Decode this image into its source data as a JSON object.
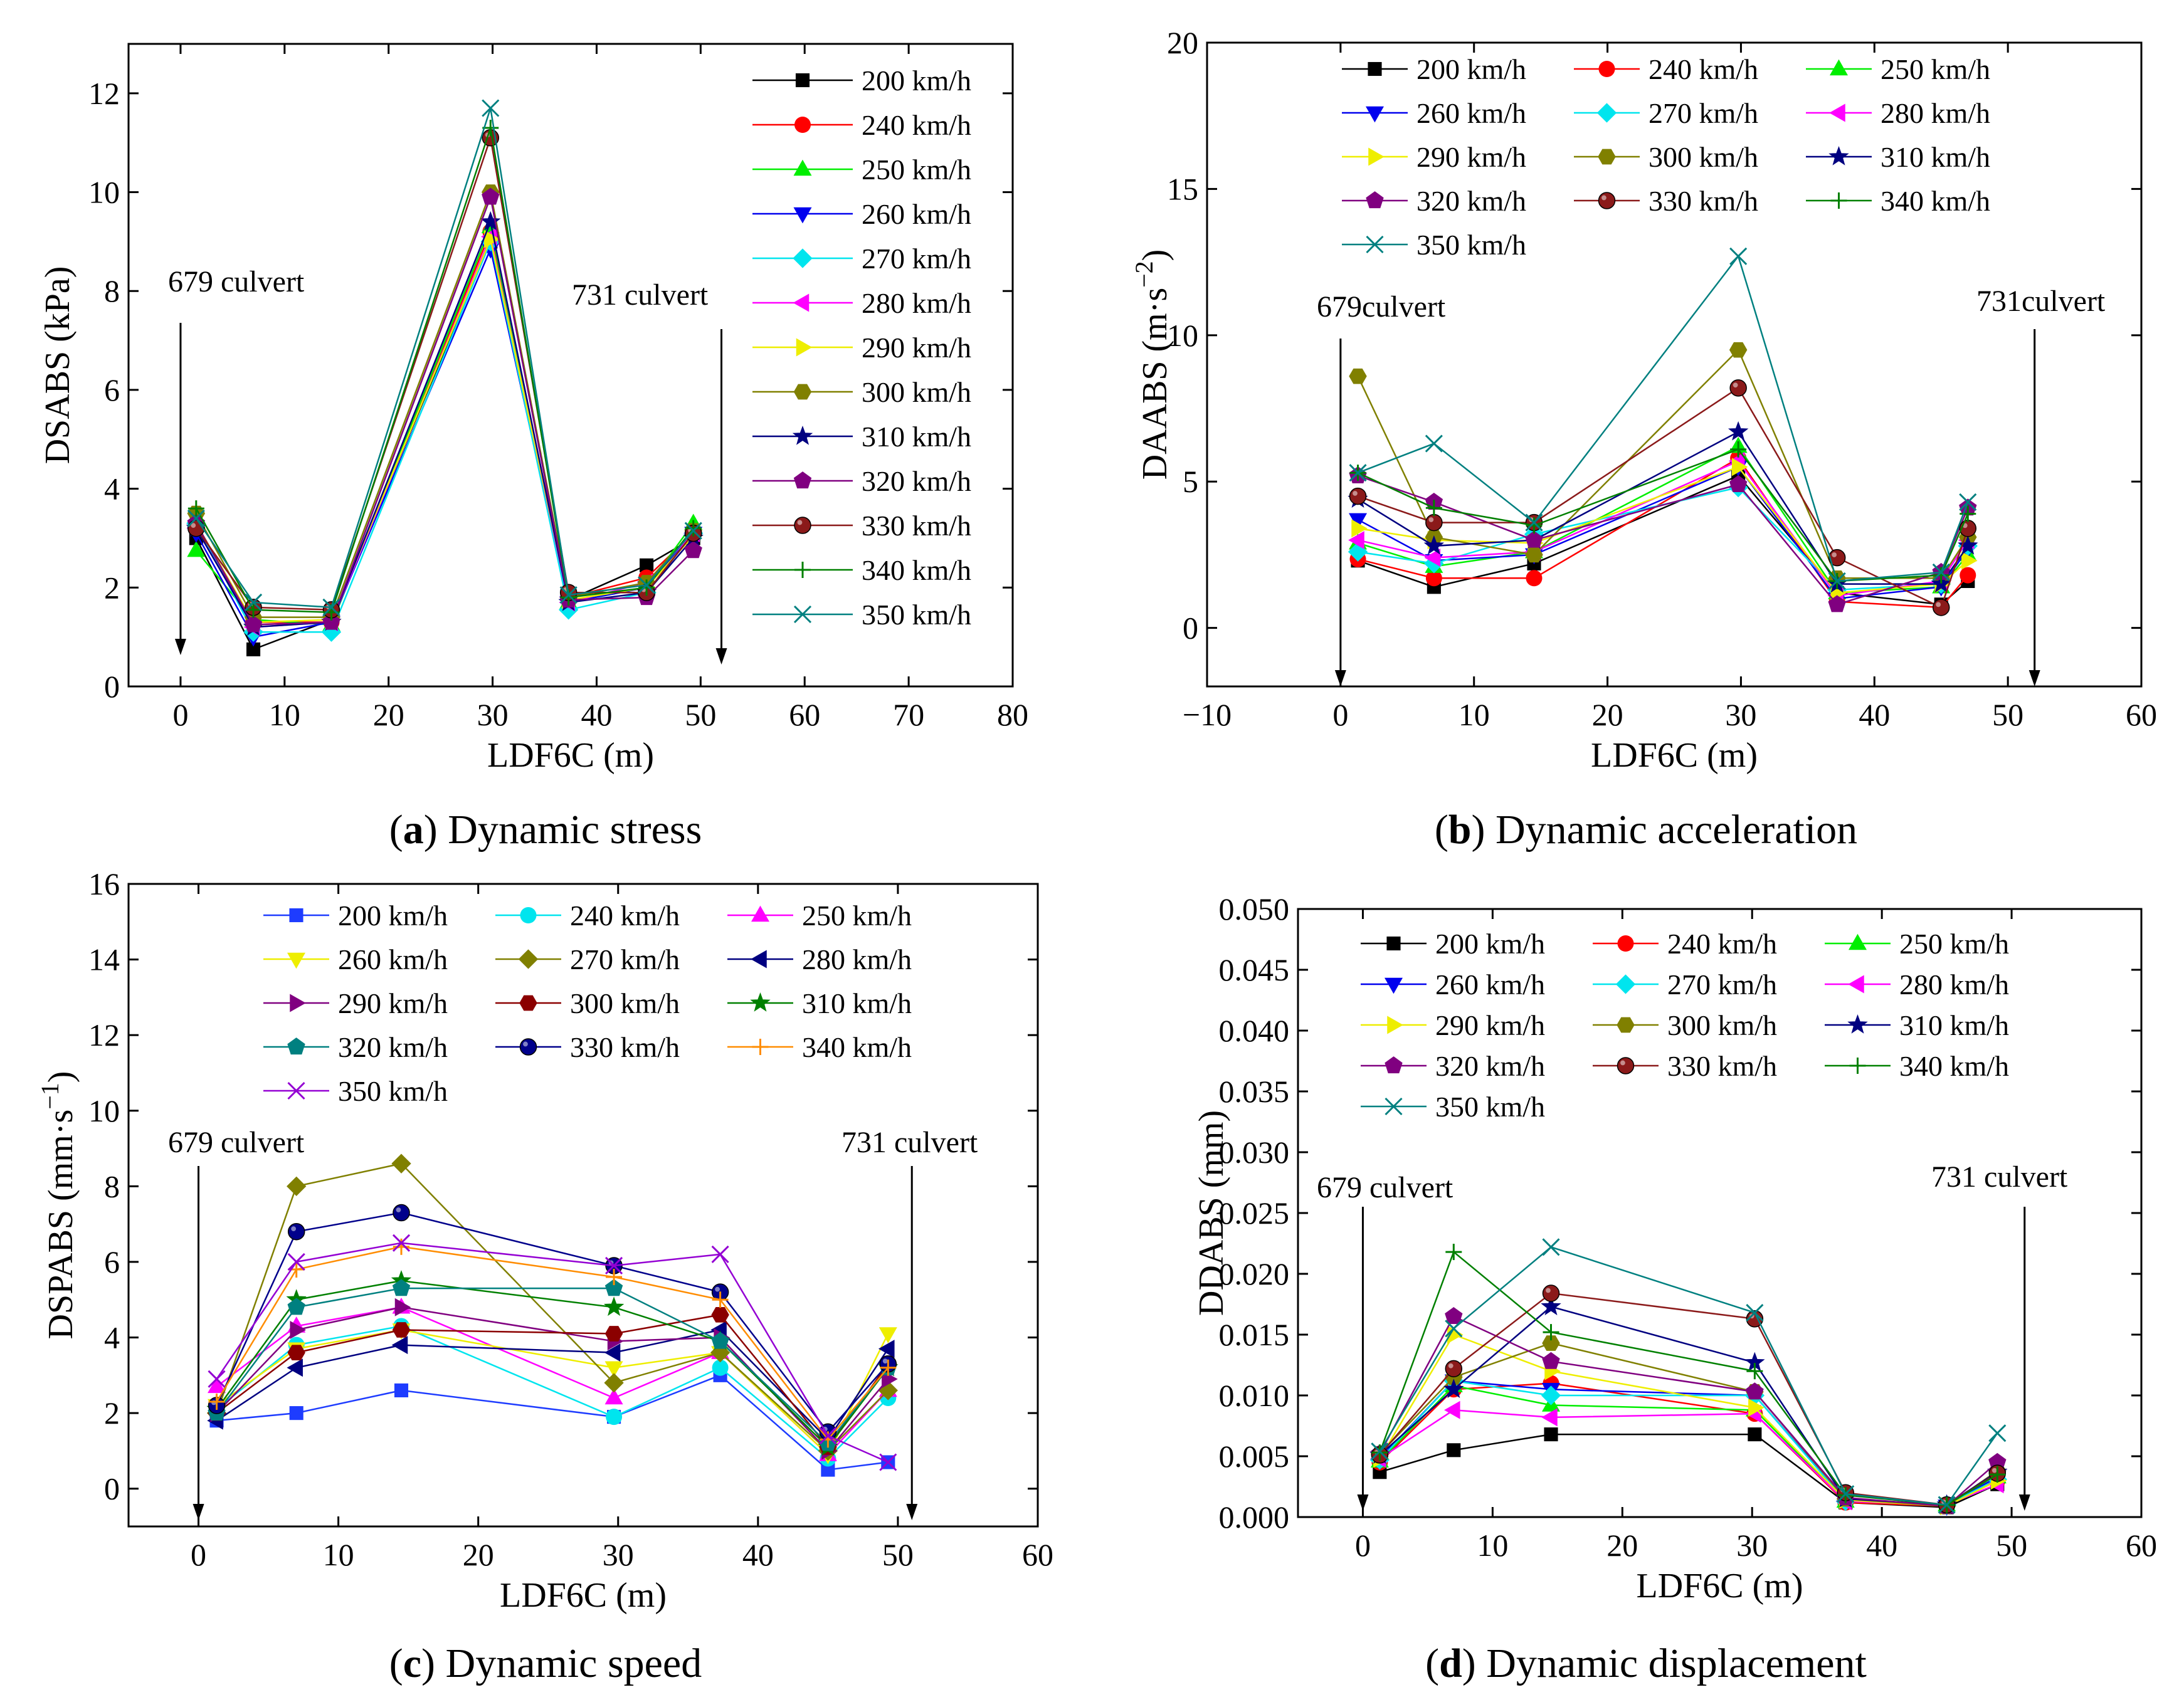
{
  "panels": [
    {
      "id": "a",
      "caption_letter": "a",
      "caption_text": "Dynamic stress",
      "annotations": [
        "679 culvert",
        "731 culvert"
      ]
    },
    {
      "id": "b",
      "caption_letter": "b",
      "caption_text": "Dynamic acceleration",
      "annotations": [
        "679culvert",
        "731culvert"
      ]
    },
    {
      "id": "c",
      "caption_letter": "c",
      "caption_text": "Dynamic speed",
      "annotations": [
        "679 culvert",
        "731 culvert"
      ]
    },
    {
      "id": "d",
      "caption_letter": "d",
      "caption_text": "Dynamic displacement",
      "annotations": [
        "679 culvert",
        "731 culvert"
      ]
    }
  ],
  "chart_data": [
    {
      "type": "line",
      "title": "(a) Dynamic stress",
      "xlabel": "LDF6C (m)",
      "ylabel": "DSABS (kPa)",
      "xlim": [
        -5,
        80
      ],
      "ylim": [
        0,
        13
      ],
      "xticks": [
        0,
        10,
        20,
        30,
        40,
        50,
        60,
        70,
        80
      ],
      "yticks": [
        0,
        2,
        4,
        6,
        8,
        10,
        12
      ],
      "ytick_labels": [
        "0",
        "2",
        "4",
        "6",
        "8",
        "10",
        "12"
      ],
      "legend_columns": 1,
      "x": [
        1.5,
        7,
        14.5,
        29.8,
        37.3,
        44.8,
        49.3
      ],
      "series": [
        {
          "name": "200 km/h",
          "color": "#000000",
          "marker": "square",
          "values": [
            3.0,
            0.75,
            1.35,
            9.0,
            1.75,
            2.45,
            3.0
          ]
        },
        {
          "name": "240 km/h",
          "color": "#ff0000",
          "marker": "circle",
          "values": [
            3.2,
            1.3,
            1.3,
            9.2,
            1.8,
            2.2,
            3.1
          ]
        },
        {
          "name": "250 km/h",
          "color": "#00ee00",
          "marker": "triangle-up",
          "values": [
            2.75,
            1.35,
            1.25,
            9.3,
            1.7,
            2.0,
            3.3
          ]
        },
        {
          "name": "260 km/h",
          "color": "#0000ee",
          "marker": "triangle-down",
          "values": [
            3.1,
            1.0,
            1.3,
            8.85,
            1.7,
            2.0,
            3.1
          ]
        },
        {
          "name": "270 km/h",
          "color": "#00e5ee",
          "marker": "diamond",
          "values": [
            3.3,
            1.1,
            1.1,
            9.0,
            1.55,
            1.9,
            3.1
          ]
        },
        {
          "name": "280 km/h",
          "color": "#ff00ff",
          "marker": "triangle-left",
          "values": [
            3.2,
            1.2,
            1.3,
            9.1,
            1.7,
            2.1,
            3.1
          ]
        },
        {
          "name": "290 km/h",
          "color": "#eeee00",
          "marker": "triangle-right",
          "values": [
            3.3,
            1.3,
            1.35,
            9.05,
            1.75,
            2.0,
            3.05
          ]
        },
        {
          "name": "300 km/h",
          "color": "#808000",
          "marker": "hexagon",
          "values": [
            3.5,
            1.4,
            1.4,
            10.0,
            1.8,
            2.1,
            3.15
          ]
        },
        {
          "name": "310 km/h",
          "color": "#000080",
          "marker": "star",
          "values": [
            3.2,
            1.2,
            1.3,
            9.4,
            1.7,
            1.9,
            3.0
          ]
        },
        {
          "name": "320 km/h",
          "color": "#800080",
          "marker": "pentagon",
          "values": [
            3.3,
            1.25,
            1.3,
            9.9,
            1.75,
            1.8,
            2.75
          ]
        },
        {
          "name": "330 km/h",
          "color": "#8b1a1a",
          "marker": "sphere",
          "values": [
            3.2,
            1.6,
            1.55,
            11.1,
            1.9,
            1.9,
            3.1
          ]
        },
        {
          "name": "340 km/h",
          "color": "#008000",
          "marker": "plus",
          "values": [
            3.6,
            1.55,
            1.5,
            11.3,
            1.8,
            2.0,
            3.2
          ]
        },
        {
          "name": "350 km/h",
          "color": "#008080",
          "marker": "x",
          "values": [
            3.4,
            1.7,
            1.6,
            11.7,
            1.85,
            2.05,
            3.15
          ]
        }
      ]
    },
    {
      "type": "line",
      "title": "(b) Dynamic acceleration",
      "xlabel": "LDF6C (m)",
      "ylabel": "DAABS (m·s⁻²)",
      "xlim": [
        -10,
        60
      ],
      "ylim": [
        -2,
        20
      ],
      "xticks": [
        -10,
        0,
        10,
        20,
        30,
        40,
        50,
        60
      ],
      "xtick_labels": [
        "−10",
        "0",
        "10",
        "20",
        "30",
        "40",
        "50",
        "60"
      ],
      "yticks": [
        0,
        5,
        10,
        15,
        20
      ],
      "ytick_labels": [
        "0",
        "5",
        "10",
        "15",
        "20"
      ],
      "legend_columns": 3,
      "x": [
        1.3,
        7,
        14.5,
        29.8,
        37.2,
        45.0,
        47.0
      ],
      "series": [
        {
          "name": "200 km/h",
          "color": "#000000",
          "marker": "square",
          "values": [
            2.3,
            1.4,
            2.2,
            5.2,
            1.2,
            0.8,
            1.6
          ]
        },
        {
          "name": "240 km/h",
          "color": "#ff0000",
          "marker": "circle",
          "values": [
            2.35,
            1.7,
            1.7,
            5.8,
            0.9,
            0.7,
            1.8
          ]
        },
        {
          "name": "250 km/h",
          "color": "#00ee00",
          "marker": "triangle-up",
          "values": [
            2.9,
            2.1,
            2.6,
            6.2,
            1.2,
            1.4,
            2.5
          ]
        },
        {
          "name": "260 km/h",
          "color": "#0000ee",
          "marker": "triangle-down",
          "values": [
            3.7,
            2.3,
            2.5,
            5.5,
            1.0,
            1.4,
            2.7
          ]
        },
        {
          "name": "270 km/h",
          "color": "#00e5ee",
          "marker": "diamond",
          "values": [
            2.6,
            2.2,
            3.2,
            4.8,
            1.3,
            1.5,
            2.8
          ]
        },
        {
          "name": "280 km/h",
          "color": "#ff00ff",
          "marker": "triangle-left",
          "values": [
            3.0,
            2.4,
            2.6,
            5.7,
            1.1,
            1.6,
            3.0
          ]
        },
        {
          "name": "290 km/h",
          "color": "#eeee00",
          "marker": "triangle-right",
          "values": [
            3.4,
            3.0,
            2.9,
            5.5,
            1.2,
            1.5,
            2.3
          ]
        },
        {
          "name": "300 km/h",
          "color": "#808000",
          "marker": "hexagon",
          "values": [
            8.6,
            3.1,
            2.5,
            9.5,
            1.7,
            1.7,
            3.1
          ]
        },
        {
          "name": "310 km/h",
          "color": "#000080",
          "marker": "star",
          "values": [
            4.4,
            2.8,
            3.0,
            6.7,
            1.5,
            1.5,
            2.8
          ]
        },
        {
          "name": "320 km/h",
          "color": "#800080",
          "marker": "pentagon",
          "values": [
            5.2,
            4.3,
            3.0,
            4.9,
            0.8,
            1.9,
            4.1
          ]
        },
        {
          "name": "330 km/h",
          "color": "#8b1a1a",
          "marker": "sphere",
          "values": [
            4.5,
            3.6,
            3.6,
            8.2,
            2.4,
            0.7,
            3.4
          ]
        },
        {
          "name": "340 km/h",
          "color": "#008000",
          "marker": "plus",
          "values": [
            5.3,
            4.1,
            3.5,
            6.1,
            1.6,
            1.8,
            3.9
          ]
        },
        {
          "name": "350 km/h",
          "color": "#008080",
          "marker": "x",
          "values": [
            5.3,
            6.3,
            3.6,
            12.7,
            1.6,
            1.9,
            4.3
          ]
        }
      ]
    },
    {
      "type": "line",
      "title": "(c) Dynamic speed",
      "xlabel": "LDF6C (m)",
      "ylabel": "DSPABS (mm·s⁻¹)",
      "xlim": [
        -5,
        60
      ],
      "ylim": [
        -1,
        16
      ],
      "xticks": [
        0,
        10,
        20,
        30,
        40,
        50,
        60
      ],
      "yticks": [
        0,
        2,
        4,
        6,
        8,
        10,
        12,
        14,
        16
      ],
      "ytick_labels": [
        "0",
        "2",
        "4",
        "6",
        "8",
        "10",
        "12",
        "14",
        "16"
      ],
      "legend_columns": 3,
      "x": [
        1.3,
        7,
        14.5,
        29.7,
        37.3,
        45,
        49.3
      ],
      "series": [
        {
          "name": "200 km/h",
          "color": "#1e3cff",
          "marker": "square",
          "values": [
            1.8,
            2.0,
            2.6,
            1.9,
            3.0,
            0.5,
            0.7
          ]
        },
        {
          "name": "240 km/h",
          "color": "#00e5ee",
          "marker": "circle",
          "values": [
            2.1,
            3.8,
            4.3,
            1.9,
            3.2,
            0.8,
            2.4
          ]
        },
        {
          "name": "250 km/h",
          "color": "#ff00ff",
          "marker": "triangle-up",
          "values": [
            2.7,
            4.3,
            4.8,
            2.4,
            3.6,
            0.9,
            2.6
          ]
        },
        {
          "name": "260 km/h",
          "color": "#eeee00",
          "marker": "triangle-down",
          "values": [
            2.2,
            3.7,
            4.2,
            3.2,
            3.6,
            0.9,
            4.1
          ]
        },
        {
          "name": "270 km/h",
          "color": "#808000",
          "marker": "diamond",
          "values": [
            2.0,
            8.0,
            8.6,
            2.8,
            3.6,
            1.0,
            2.6
          ]
        },
        {
          "name": "280 km/h",
          "color": "#000080",
          "marker": "triangle-left",
          "values": [
            1.8,
            3.2,
            3.8,
            3.6,
            4.2,
            1.3,
            3.7
          ]
        },
        {
          "name": "290 km/h",
          "color": "#800080",
          "marker": "triangle-right",
          "values": [
            2.0,
            4.2,
            4.8,
            3.9,
            4.0,
            1.0,
            2.9
          ]
        },
        {
          "name": "300 km/h",
          "color": "#8b0000",
          "marker": "hexagon",
          "values": [
            2.0,
            3.6,
            4.2,
            4.1,
            4.6,
            1.1,
            3.3
          ]
        },
        {
          "name": "310 km/h",
          "color": "#008000",
          "marker": "star",
          "values": [
            2.1,
            5.0,
            5.5,
            4.8,
            3.9,
            1.1,
            3.2
          ]
        },
        {
          "name": "320 km/h",
          "color": "#008080",
          "marker": "pentagon",
          "values": [
            2.0,
            4.8,
            5.3,
            5.3,
            3.9,
            1.2,
            3.2
          ]
        },
        {
          "name": "330 km/h",
          "color": "#00008b",
          "marker": "sphere",
          "values": [
            2.2,
            6.8,
            7.3,
            5.9,
            5.2,
            1.5,
            3.3
          ]
        },
        {
          "name": "340 km/h",
          "color": "#ff8c00",
          "marker": "plus",
          "values": [
            2.3,
            5.8,
            6.4,
            5.6,
            5.0,
            1.3,
            3.2
          ]
        },
        {
          "name": "350 km/h",
          "color": "#9400d3",
          "marker": "x",
          "values": [
            2.9,
            6.0,
            6.5,
            5.9,
            6.2,
            1.4,
            0.7
          ]
        }
      ]
    },
    {
      "type": "line",
      "title": "(d) Dynamic displacement",
      "xlabel": "LDF6C (m)",
      "ylabel": "DDABS (mm)",
      "xlim": [
        -5,
        60
      ],
      "ylim": [
        0,
        0.05
      ],
      "xticks": [
        0,
        10,
        20,
        30,
        40,
        50,
        60
      ],
      "yticks": [
        0,
        0.005,
        0.01,
        0.015,
        0.02,
        0.025,
        0.03,
        0.035,
        0.04,
        0.045,
        0.05
      ],
      "ytick_labels": [
        "0.000",
        "0.005",
        "0.010",
        "0.015",
        "0.020",
        "0.025",
        "0.030",
        "0.035",
        "0.040",
        "0.045",
        "0.050"
      ],
      "legend_columns": 3,
      "x": [
        1.3,
        7,
        14.5,
        30.2,
        37.2,
        45,
        48.9
      ],
      "series": [
        {
          "name": "200 km/h",
          "color": "#000000",
          "marker": "square",
          "values": [
            0.0037,
            0.0055,
            0.0068,
            0.0068,
            0.0012,
            0.0008,
            0.0027
          ]
        },
        {
          "name": "240 km/h",
          "color": "#ff0000",
          "marker": "circle",
          "values": [
            0.0045,
            0.0105,
            0.011,
            0.0085,
            0.0012,
            0.0009,
            0.003
          ]
        },
        {
          "name": "250 km/h",
          "color": "#00ee00",
          "marker": "triangle-up",
          "values": [
            0.0046,
            0.0108,
            0.0092,
            0.0088,
            0.0013,
            0.001,
            0.0033
          ]
        },
        {
          "name": "260 km/h",
          "color": "#0000ee",
          "marker": "triangle-down",
          "values": [
            0.0048,
            0.0112,
            0.0105,
            0.01,
            0.0014,
            0.0009,
            0.0033
          ]
        },
        {
          "name": "270 km/h",
          "color": "#00e5ee",
          "marker": "diamond",
          "values": [
            0.0047,
            0.0112,
            0.01,
            0.01,
            0.0013,
            0.001,
            0.0031
          ]
        },
        {
          "name": "280 km/h",
          "color": "#ff00ff",
          "marker": "triangle-left",
          "values": [
            0.0048,
            0.0088,
            0.0082,
            0.0085,
            0.0013,
            0.001,
            0.0027
          ]
        },
        {
          "name": "290 km/h",
          "color": "#eeee00",
          "marker": "triangle-right",
          "values": [
            0.0048,
            0.015,
            0.012,
            0.009,
            0.0014,
            0.0009,
            0.003
          ]
        },
        {
          "name": "300 km/h",
          "color": "#808000",
          "marker": "hexagon",
          "values": [
            0.0052,
            0.0115,
            0.0143,
            0.0103,
            0.0015,
            0.0009,
            0.0038
          ]
        },
        {
          "name": "310 km/h",
          "color": "#000080",
          "marker": "star",
          "values": [
            0.0051,
            0.0105,
            0.0173,
            0.0127,
            0.0015,
            0.001,
            0.0037
          ]
        },
        {
          "name": "320 km/h",
          "color": "#800080",
          "marker": "pentagon",
          "values": [
            0.0052,
            0.0165,
            0.0128,
            0.0103,
            0.0016,
            0.0009,
            0.0045
          ]
        },
        {
          "name": "330 km/h",
          "color": "#8b1a1a",
          "marker": "sphere",
          "values": [
            0.0051,
            0.0122,
            0.0184,
            0.0163,
            0.002,
            0.001,
            0.0036
          ]
        },
        {
          "name": "340 km/h",
          "color": "#008000",
          "marker": "plus",
          "values": [
            0.0053,
            0.0218,
            0.0152,
            0.012,
            0.0018,
            0.001,
            0.0035
          ]
        },
        {
          "name": "350 km/h",
          "color": "#008080",
          "marker": "x",
          "values": [
            0.0054,
            0.0155,
            0.0222,
            0.0168,
            0.0019,
            0.001,
            0.0069
          ]
        }
      ]
    }
  ]
}
